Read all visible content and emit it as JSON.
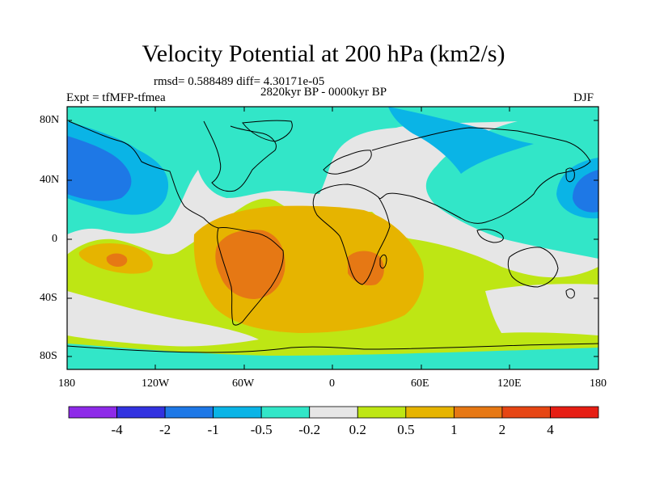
{
  "title": "Velocity Potential at 200 hPa (km2/s)",
  "stats_line": "rmsd= 0.588489  diff= 4.30171e-05",
  "period_line": "2820kyr BP - 0000kyr BP",
  "experiment_line": "Expt = tfMFP-tfmea",
  "season_label": "DJF",
  "lat_ticks": [
    "80N",
    "40N",
    "0",
    "40S",
    "80S"
  ],
  "lon_ticks": [
    "180",
    "120W",
    "60W",
    "0",
    "60E",
    "120E",
    "180"
  ],
  "colorbar": {
    "colors": [
      "#8e2ae8",
      "#3232e0",
      "#1e78e6",
      "#0ab4e6",
      "#32e6c8",
      "#e6e6e6",
      "#bee614",
      "#e6b400",
      "#e67814",
      "#e64614",
      "#e61e14"
    ],
    "labels": [
      "-4",
      "-2",
      "-1",
      "-0.5",
      "-0.2",
      "0.2",
      "0.5",
      "1",
      "2",
      "4"
    ]
  }
}
